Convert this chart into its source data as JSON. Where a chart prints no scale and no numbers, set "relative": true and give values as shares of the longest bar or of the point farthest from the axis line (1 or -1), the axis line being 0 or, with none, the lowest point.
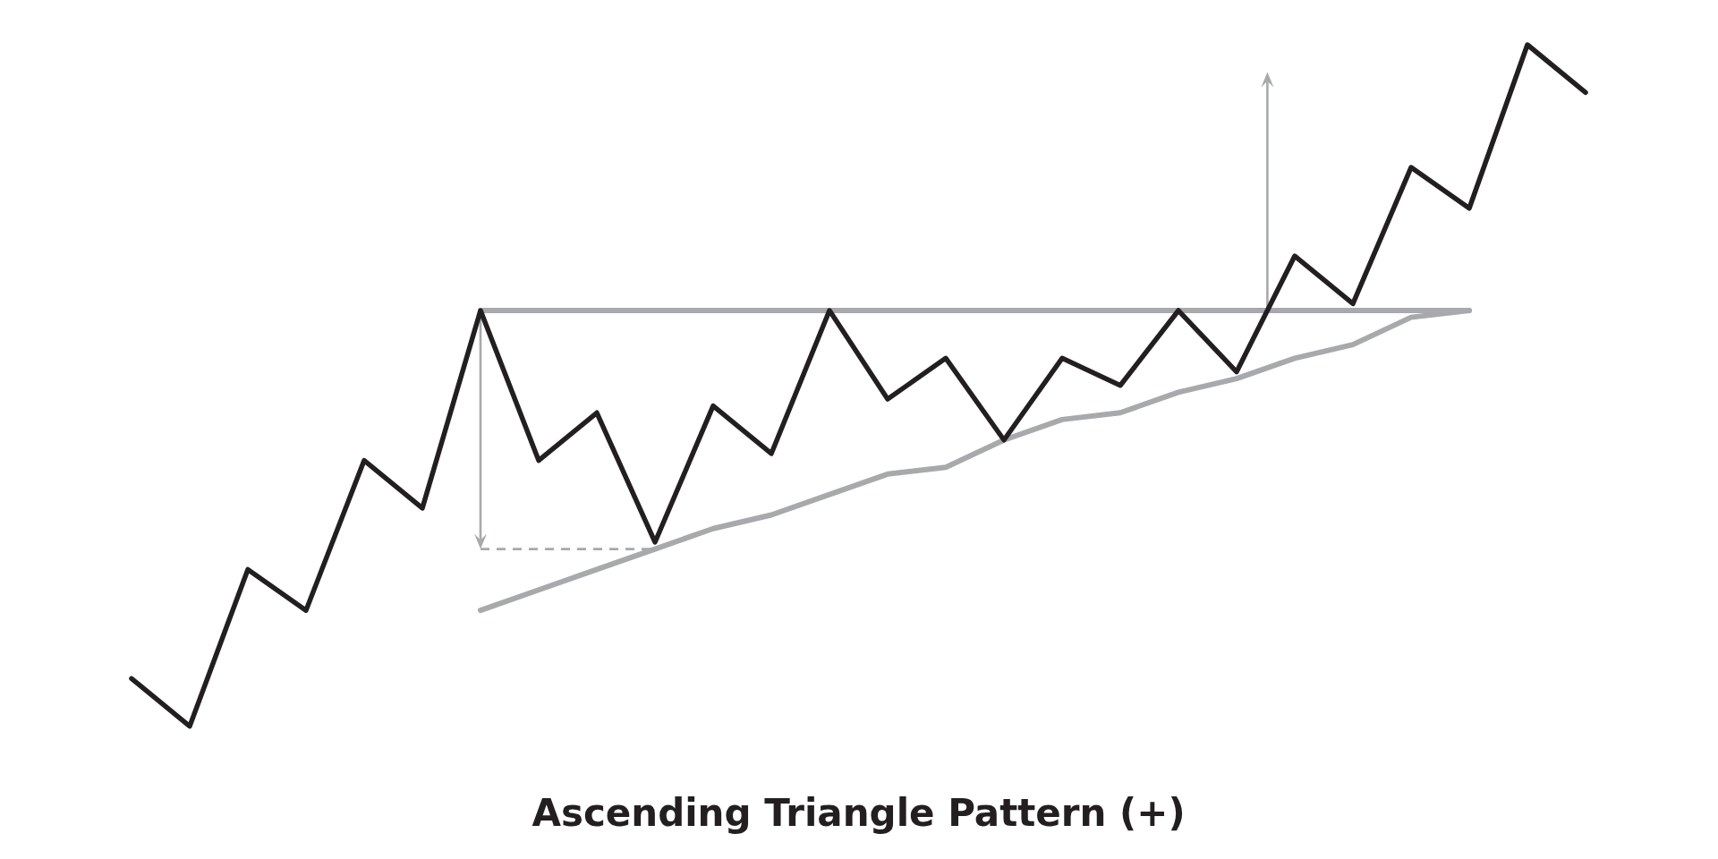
{
  "chart_data": {
    "type": "line",
    "title": "Ascending Triangle Pattern (+)",
    "relative": true,
    "tick_labels": false,
    "categories": [
      null,
      null,
      null,
      null,
      null,
      null,
      null,
      null,
      null,
      null,
      null,
      null,
      null,
      null,
      null,
      null,
      null,
      null,
      null,
      null,
      null,
      null,
      null,
      null,
      null,
      null
    ],
    "series": [
      {
        "color": "#231f20",
        "values": [
          0.07,
          0,
          0.23,
          0.17,
          0.39,
          0.32,
          0.61,
          0.39,
          0.46,
          0.27,
          0.47,
          0.4,
          0.61,
          0.48,
          0.54,
          0.42,
          0.54,
          0.5,
          0.61,
          0.52,
          0.69,
          0.62,
          0.82,
          0.76,
          1,
          0.93
        ]
      },
      {
        "color": "#a7a9ac",
        "values": [
          null,
          null,
          null,
          null,
          null,
          null,
          0.61,
          0.61,
          0.61,
          0.61,
          0.61,
          0.61,
          0.61,
          0.61,
          0.61,
          0.61,
          0.61,
          0.61,
          0.61,
          0.61,
          0.61,
          0.61,
          0.61,
          0.61,
          null,
          null
        ]
      },
      {
        "color": "#a7a9ac",
        "values": [
          null,
          null,
          null,
          null,
          null,
          null,
          0.17,
          0.2,
          0.23,
          0.26,
          0.29,
          0.31,
          0.34,
          0.37,
          0.38,
          0.42,
          0.45,
          0.46,
          0.49,
          0.51,
          0.54,
          0.56,
          0.6,
          0.61,
          null,
          null
        ]
      },
      {
        "color": "#a7a9ac",
        "line_style": "dashed",
        "values": [
          null,
          null,
          null,
          null,
          null,
          null,
          0.26,
          0.26,
          0.26,
          0.26,
          null,
          null,
          null,
          null,
          null,
          null,
          null,
          null,
          null,
          null,
          null,
          null,
          null,
          null,
          null,
          null
        ]
      }
    ]
  }
}
